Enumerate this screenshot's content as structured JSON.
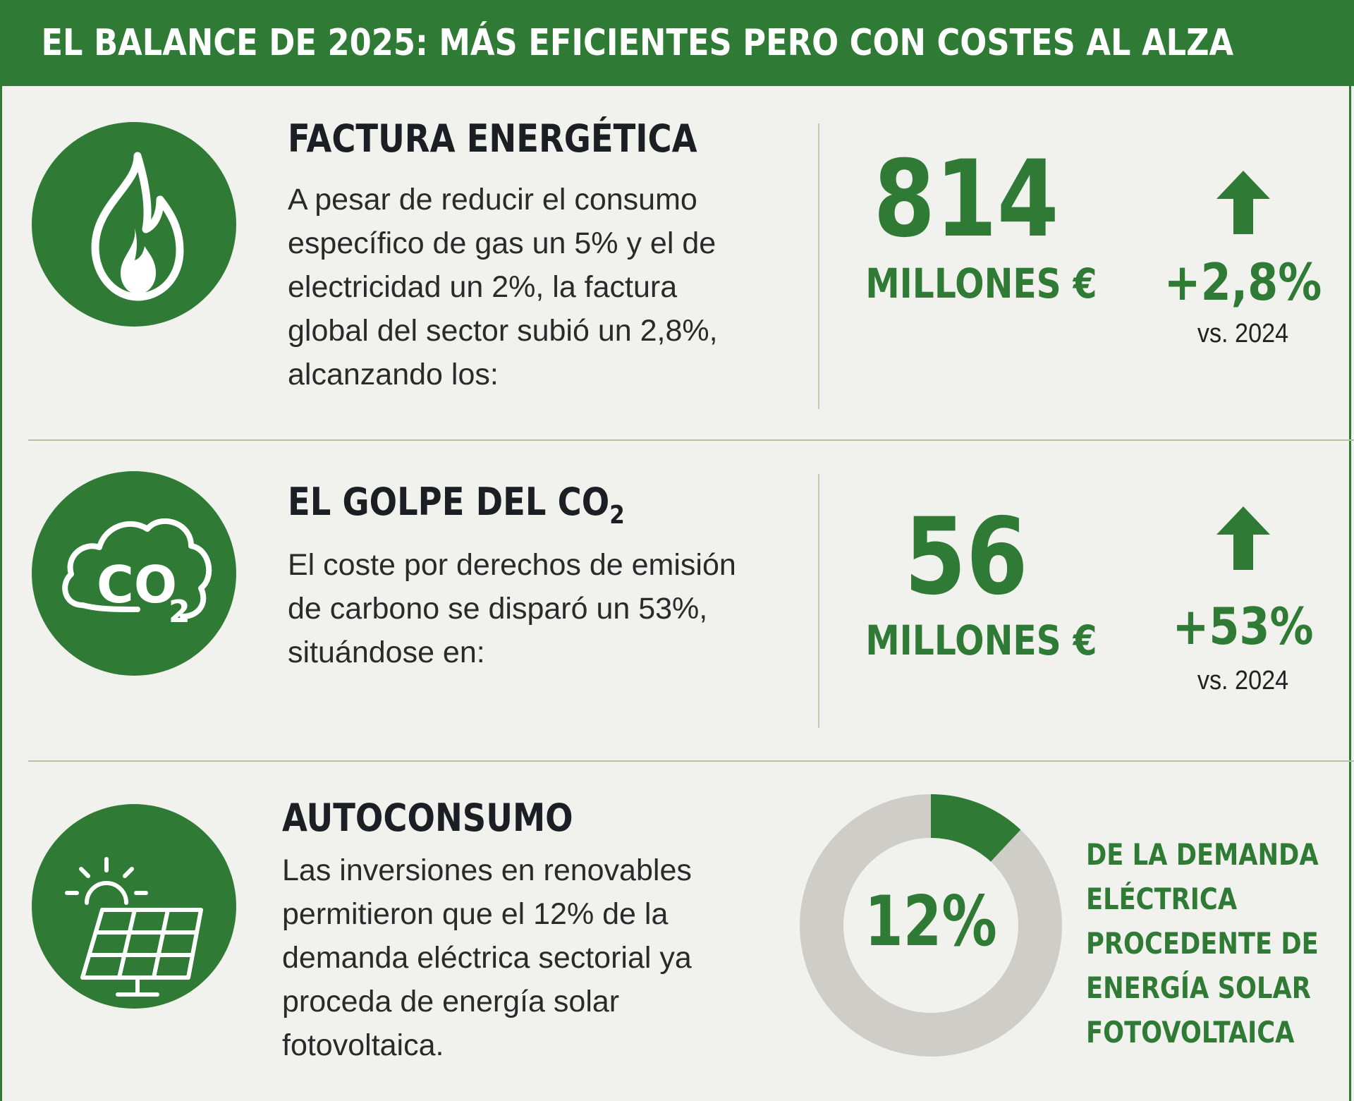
{
  "header": {
    "title": "EL BALANCE DE 2025: MÁS EFICIENTES PERO CON COSTES AL ALZA"
  },
  "colors": {
    "accent": "#2f7a34",
    "donut_remainder": "#cfcdc8",
    "text": "#1b1f24"
  },
  "sections": [
    {
      "icon": "flame-icon",
      "title": "FACTURA ENERGÉTICA",
      "body_lines": [
        "A pesar de reducir el consumo",
        "específico de gas un 5% y el de",
        "electricidad un 2%, la factura",
        "global del sector subió un 2,8%,",
        "alcanzando los:"
      ],
      "value": "814",
      "unit": "MILLONES €",
      "change": "+2,8%",
      "comparison": "vs. 2024"
    },
    {
      "icon": "co2-cloud-icon",
      "icon_text": "CO",
      "icon_sub": "2",
      "title": "EL GOLPE DEL CO",
      "title_sub": "2",
      "body_lines": [
        "El coste por derechos de emisión",
        "de carbono se disparó un 53%,",
        "situándose en:"
      ],
      "value": "56",
      "unit": "MILLONES €",
      "change": "+53%",
      "comparison": "vs. 2024"
    },
    {
      "icon": "solar-panel-icon",
      "title": "AUTOCONSUMO",
      "body_lines": [
        "Las inversiones en renovables",
        "permitieron que el 12% de la",
        "demanda eléctrica sectorial ya",
        "proceda de energía solar",
        "fotovoltaica."
      ],
      "donut_value": 12,
      "donut_label": "12%",
      "caption_lines": [
        "DE LA DEMANDA",
        "ELÉCTRICA",
        "PROCEDENTE DE",
        "ENERGÍA SOLAR",
        "FOTOVOLTAICA"
      ]
    }
  ]
}
